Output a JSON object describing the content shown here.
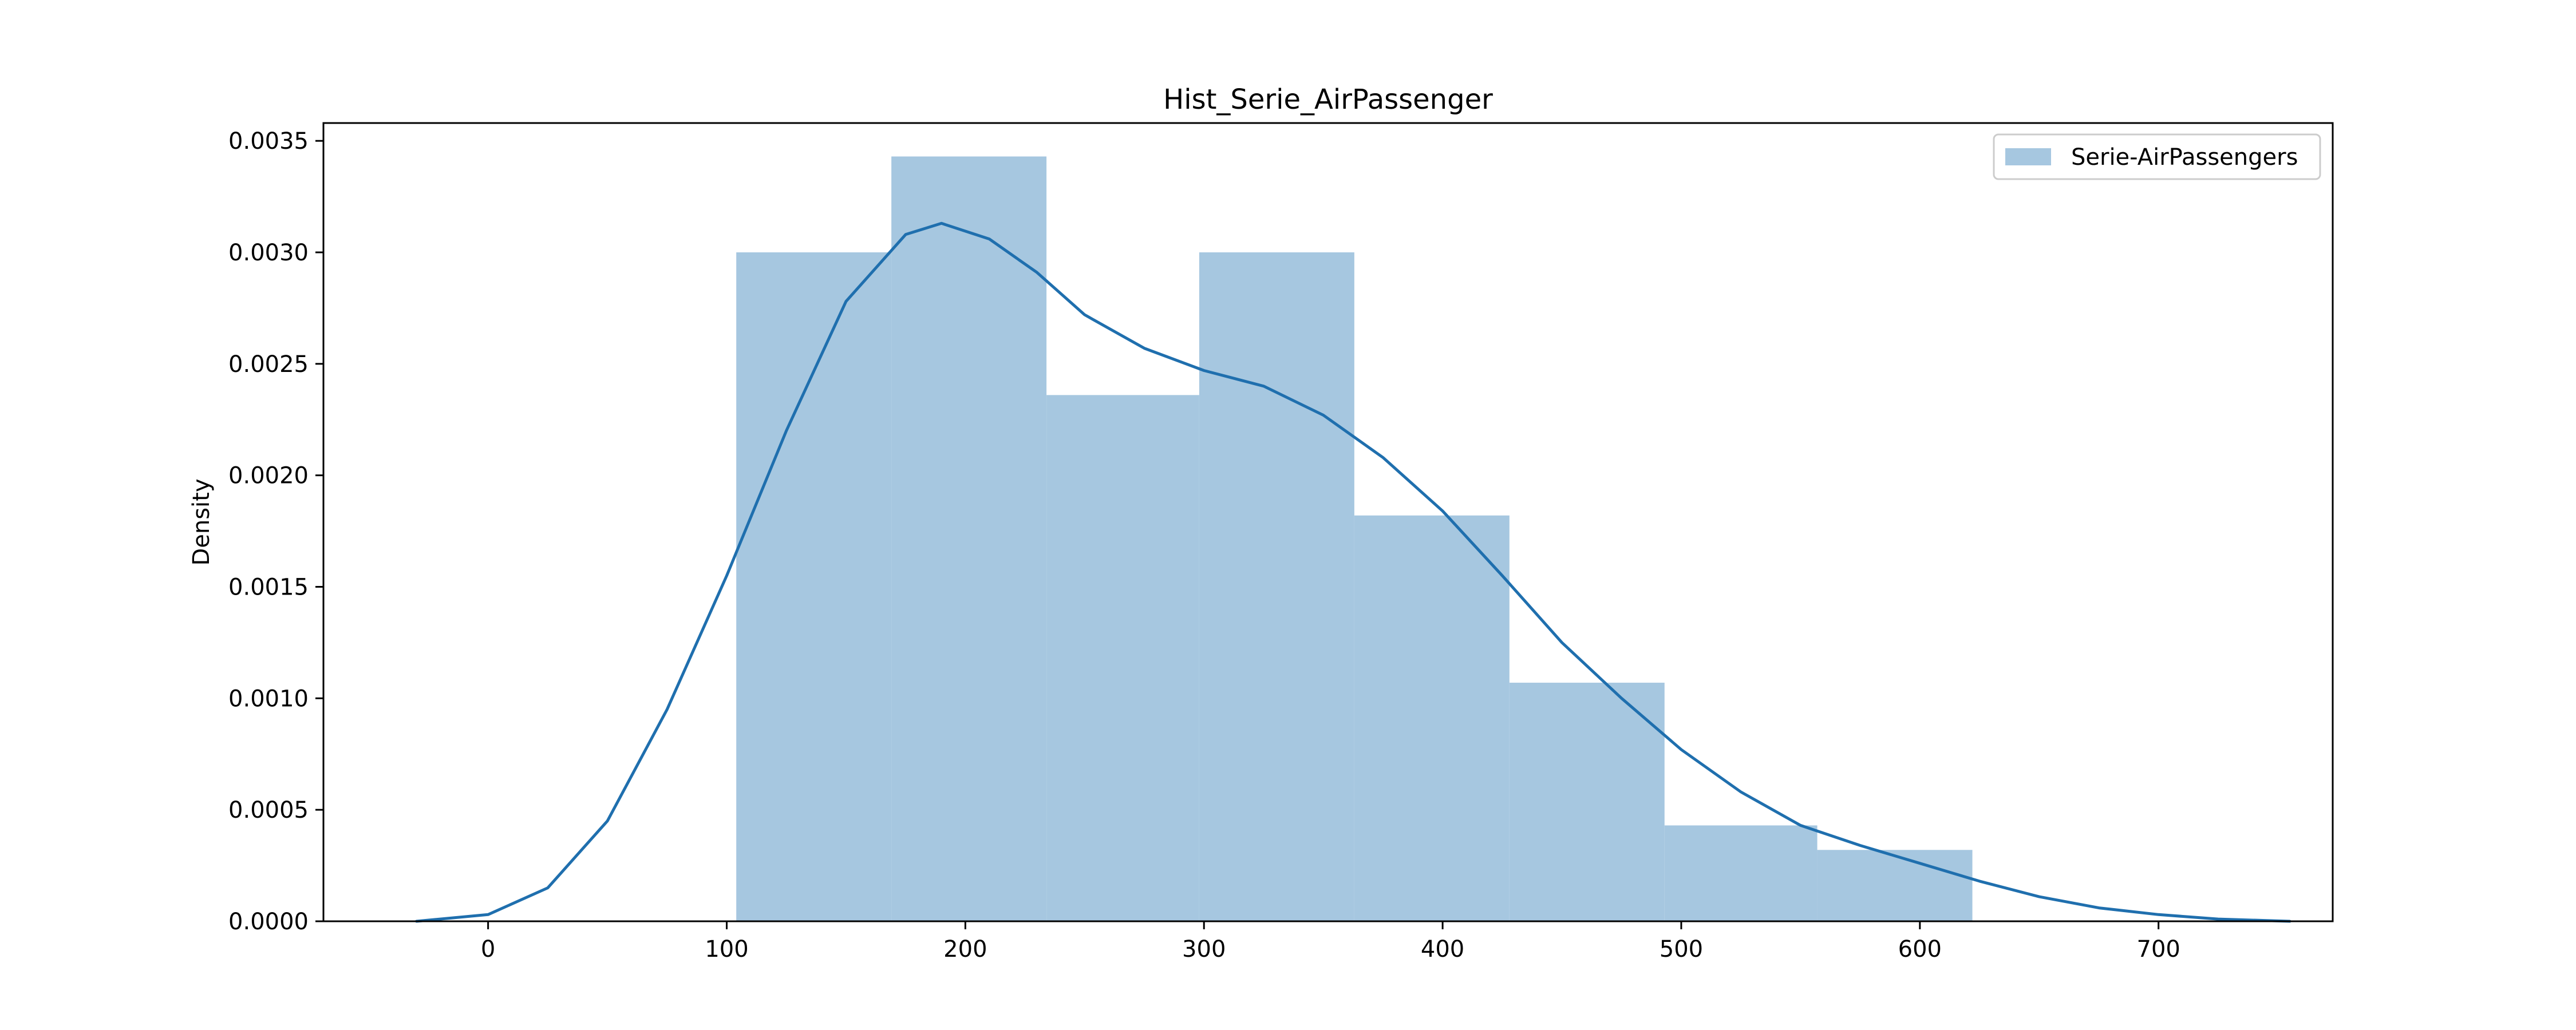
{
  "chart_data": {
    "type": "bar",
    "title": "Hist_Serie_AirPassenger",
    "xlabel": "",
    "ylabel": "Density",
    "xlim": [
      -69,
      773
    ],
    "ylim": [
      0,
      0.00358
    ],
    "x_ticks": [
      0,
      100,
      200,
      300,
      400,
      500,
      600,
      700
    ],
    "y_ticks": [
      0.0,
      0.0005,
      0.001,
      0.0015,
      0.002,
      0.0025,
      0.003,
      0.0035
    ],
    "y_tick_labels": [
      "0.0000",
      "0.0005",
      "0.0010",
      "0.0015",
      "0.0020",
      "0.0025",
      "0.0030",
      "0.0035"
    ],
    "grid": false,
    "legend_position": "top-right",
    "colors": {
      "bar": "#a6c7e0",
      "kde": "#1f6fae",
      "axis": "#000000",
      "legend_border": "#cccccc"
    },
    "series": [
      {
        "name": "Serie-AirPassengers",
        "kind": "histogram",
        "bins": [
          {
            "x0": 104,
            "x1": 169,
            "density": 0.003
          },
          {
            "x0": 169,
            "x1": 234,
            "density": 0.00343
          },
          {
            "x0": 234,
            "x1": 298,
            "density": 0.00236
          },
          {
            "x0": 298,
            "x1": 363,
            "density": 0.003
          },
          {
            "x0": 363,
            "x1": 428,
            "density": 0.00182
          },
          {
            "x0": 428,
            "x1": 493,
            "density": 0.00107
          },
          {
            "x0": 493,
            "x1": 557,
            "density": 0.00043
          },
          {
            "x0": 557,
            "x1": 622,
            "density": 0.00032
          }
        ]
      },
      {
        "kind": "kde",
        "points": [
          [
            -30,
            0.0
          ],
          [
            0,
            3e-05
          ],
          [
            25,
            0.00015
          ],
          [
            50,
            0.00045
          ],
          [
            75,
            0.00095
          ],
          [
            100,
            0.00155
          ],
          [
            125,
            0.0022
          ],
          [
            150,
            0.00278
          ],
          [
            175,
            0.00308
          ],
          [
            190,
            0.00313
          ],
          [
            210,
            0.00306
          ],
          [
            230,
            0.00291
          ],
          [
            250,
            0.00272
          ],
          [
            275,
            0.00257
          ],
          [
            300,
            0.00247
          ],
          [
            325,
            0.0024
          ],
          [
            350,
            0.00227
          ],
          [
            375,
            0.00208
          ],
          [
            400,
            0.00184
          ],
          [
            425,
            0.00155
          ],
          [
            450,
            0.00125
          ],
          [
            475,
            0.001
          ],
          [
            500,
            0.00077
          ],
          [
            525,
            0.00058
          ],
          [
            550,
            0.00043
          ],
          [
            575,
            0.00034
          ],
          [
            600,
            0.00026
          ],
          [
            625,
            0.00018
          ],
          [
            650,
            0.00011
          ],
          [
            675,
            6e-05
          ],
          [
            700,
            3e-05
          ],
          [
            725,
            1e-05
          ],
          [
            755,
            0.0
          ]
        ]
      }
    ]
  }
}
